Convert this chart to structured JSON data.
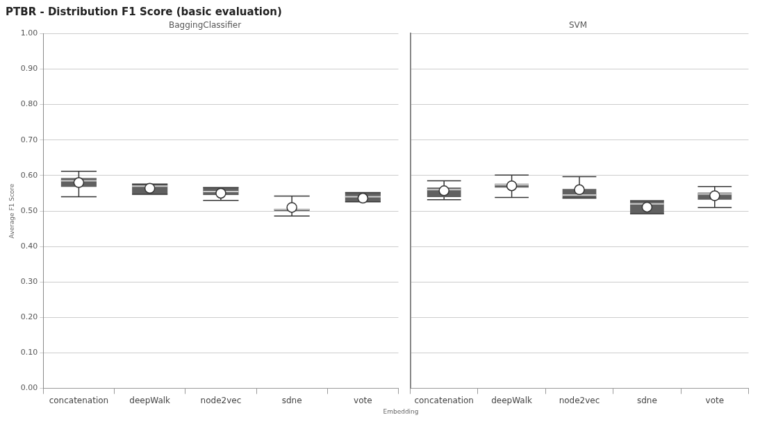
{
  "chart_data": [
    {
      "type": "box",
      "title": "PTBR - Distribution F1 Score (basic evaluation)",
      "subtitle": "BaggingClassifier",
      "xlabel": "Embedding",
      "ylabel": "Average F1 Score",
      "categories": [
        "concatenation",
        "deepWalk",
        "node2vec",
        "sdne",
        "vote"
      ],
      "color": "#606060",
      "marker": "circle",
      "grid": "y",
      "legend": false,
      "boxes": [
        {
          "low": 0.54,
          "q1": 0.568,
          "median": 0.585,
          "q3": 0.593,
          "high": 0.612,
          "mean": 0.58
        },
        {
          "low": 0.547,
          "q1": 0.547,
          "median": 0.57,
          "q3": 0.576,
          "high": 0.576,
          "mean": 0.564
        },
        {
          "low": 0.53,
          "q1": 0.545,
          "median": 0.555,
          "q3": 0.566,
          "high": 0.566,
          "mean": 0.55
        },
        {
          "low": 0.486,
          "q1": 0.5,
          "median": 0.505,
          "q3": 0.506,
          "high": 0.542,
          "mean": 0.51
        },
        {
          "low": 0.526,
          "q1": 0.526,
          "median": 0.54,
          "q3": 0.552,
          "high": 0.552,
          "mean": 0.536
        }
      ],
      "ylim": [
        0,
        1
      ],
      "yticks": [
        {
          "value": 0,
          "label": "0.00"
        },
        {
          "value": 0.1,
          "label": "0.10"
        },
        {
          "value": 0.2,
          "label": "0.20"
        },
        {
          "value": 0.3,
          "label": "0.30"
        },
        {
          "value": 0.4,
          "label": "0.40"
        },
        {
          "value": 0.5,
          "label": "0.50"
        },
        {
          "value": 0.6,
          "label": "0.60"
        },
        {
          "value": 0.7,
          "label": "0.70"
        },
        {
          "value": 0.8,
          "label": "0.80"
        },
        {
          "value": 0.9,
          "label": "0.90"
        },
        {
          "value": 1,
          "label": "1.00"
        }
      ]
    },
    {
      "type": "box",
      "subtitle": "SVM",
      "categories": [
        "concatenation",
        "deepWalk",
        "node2vec",
        "sdne",
        "vote"
      ],
      "color": "#606060",
      "marker": "circle",
      "grid": "y",
      "legend": false,
      "tick_labels": "x",
      "boxes": [
        {
          "low": 0.532,
          "q1": 0.539,
          "median": 0.56,
          "q3": 0.566,
          "high": 0.585,
          "mean": 0.557
        },
        {
          "low": 0.538,
          "q1": 0.566,
          "median": 0.574,
          "q3": 0.577,
          "high": 0.601,
          "mean": 0.571
        },
        {
          "low": 0.536,
          "q1": 0.536,
          "median": 0.545,
          "q3": 0.562,
          "high": 0.597,
          "mean": 0.56
        },
        {
          "low": 0.492,
          "q1": 0.492,
          "median": 0.52,
          "q3": 0.529,
          "high": 0.529,
          "mean": 0.511
        },
        {
          "low": 0.51,
          "q1": 0.532,
          "median": 0.548,
          "q3": 0.552,
          "high": 0.569,
          "mean": 0.543
        }
      ],
      "ylim": [
        0,
        1
      ],
      "yticks": [
        0,
        0.1,
        0.2,
        0.3,
        0.4,
        0.5,
        0.6,
        0.7,
        0.8,
        0.9,
        1
      ]
    }
  ]
}
